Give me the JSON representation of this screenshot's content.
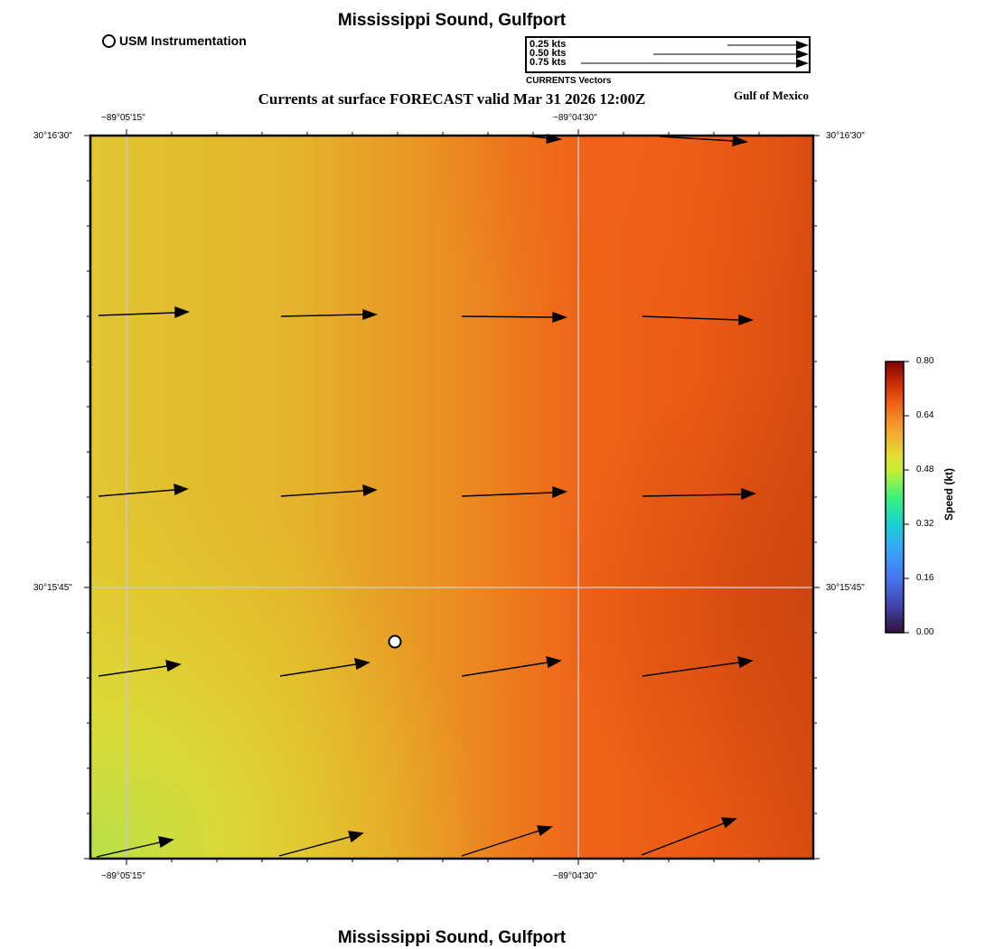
{
  "title": "Mississippi Sound, Gulfport",
  "bottom_title": "Mississippi Sound, Gulfport",
  "subtitle": "Currents at surface FORECAST valid Mar 31 2026 12:00Z",
  "region_label": "Gulf of Mexico",
  "station_legend": {
    "label": "USM Instrumentation"
  },
  "vector_legend": {
    "title": "CURRENTS Vectors",
    "entries": [
      {
        "label": "0.25 kts",
        "speed": 0.25
      },
      {
        "label": "0.50 kts",
        "speed": 0.5
      },
      {
        "label": "0.75 kts",
        "speed": 0.75
      }
    ]
  },
  "axes": {
    "top_labels": [
      "−89°05'15\"",
      "−89°04'30\""
    ],
    "bottom_labels": [
      "−89°05'15\"",
      "−89°04'30\""
    ],
    "left_labels": [
      "30°16'30\"",
      "30°15'45\""
    ],
    "right_labels": [
      "30°16'30\"",
      "30°15'45\""
    ]
  },
  "colorbar": {
    "label": "Speed (kt)",
    "ticks": [
      "0.80",
      "0.64",
      "0.48",
      "0.32",
      "0.16",
      "0.00"
    ],
    "min": 0.0,
    "max": 0.8
  },
  "colors": {
    "field_low": "#b8e04a",
    "field_mid": "#e0c830",
    "field_high": "#ee5e16",
    "field_max": "#d24a12",
    "grid": "#c8c8c8"
  }
}
